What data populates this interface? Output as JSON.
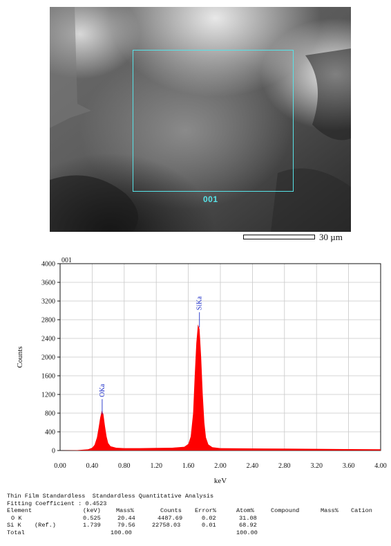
{
  "micrograph": {
    "roi_label": "001",
    "scale_label": "30 µm"
  },
  "chart_data": {
    "type": "line",
    "title": "001",
    "xlabel": "keV",
    "ylabel": "Counts",
    "xlim": [
      0.0,
      4.0
    ],
    "ylim": [
      0,
      4000
    ],
    "x_ticks": [
      "0.00",
      "0.40",
      "0.80",
      "1.20",
      "1.60",
      "2.00",
      "2.40",
      "2.80",
      "3.20",
      "3.60",
      "4.00"
    ],
    "y_ticks": [
      "0",
      "400",
      "800",
      "1200",
      "1600",
      "2000",
      "2400",
      "2800",
      "3200",
      "3600",
      "4000"
    ],
    "grid": true,
    "color": "#ff0000",
    "series": [
      {
        "values": [
          [
            0.0,
            0
          ],
          [
            0.2,
            5
          ],
          [
            0.35,
            25
          ],
          [
            0.4,
            60
          ],
          [
            0.43,
            120
          ],
          [
            0.46,
            280
          ],
          [
            0.48,
            480
          ],
          [
            0.5,
            700
          ],
          [
            0.52,
            850
          ],
          [
            0.54,
            780
          ],
          [
            0.56,
            520
          ],
          [
            0.58,
            300
          ],
          [
            0.6,
            160
          ],
          [
            0.63,
            90
          ],
          [
            0.7,
            60
          ],
          [
            0.8,
            50
          ],
          [
            1.0,
            50
          ],
          [
            1.2,
            55
          ],
          [
            1.4,
            60
          ],
          [
            1.55,
            80
          ],
          [
            1.6,
            140
          ],
          [
            1.63,
            300
          ],
          [
            1.66,
            800
          ],
          [
            1.68,
            1600
          ],
          [
            1.7,
            2300
          ],
          [
            1.72,
            2700
          ],
          [
            1.74,
            2600
          ],
          [
            1.76,
            2000
          ],
          [
            1.78,
            1200
          ],
          [
            1.8,
            600
          ],
          [
            1.82,
            280
          ],
          [
            1.85,
            130
          ],
          [
            1.9,
            70
          ],
          [
            2.0,
            50
          ],
          [
            2.4,
            45
          ],
          [
            2.8,
            40
          ],
          [
            3.2,
            35
          ],
          [
            3.6,
            30
          ],
          [
            4.0,
            25
          ]
        ]
      }
    ],
    "annotations": [
      {
        "text": "OKa",
        "x": 0.525,
        "y": 1100
      },
      {
        "text": "SiKa",
        "x": 1.739,
        "y": 2960
      }
    ]
  },
  "quant": {
    "title": "Thin Film Standardless  Standardless Quantitative Analysis",
    "fitting": "Fitting Coefficient : 0.4523",
    "header": [
      "Element",
      "(keV)",
      "Mass%",
      "Counts",
      "Error%",
      "Atom%",
      "Compound",
      "Mass%",
      "Cation"
    ],
    "rows": [
      [
        "O K",
        "",
        "0.525",
        "20.44",
        "4487.69",
        "0.02",
        "31.08"
      ],
      [
        "Si K",
        "(Ref.)",
        "1.739",
        "79.56",
        "22758.03",
        "0.01",
        "68.92"
      ]
    ],
    "total": [
      "Total",
      "100.00",
      "100.00"
    ]
  }
}
